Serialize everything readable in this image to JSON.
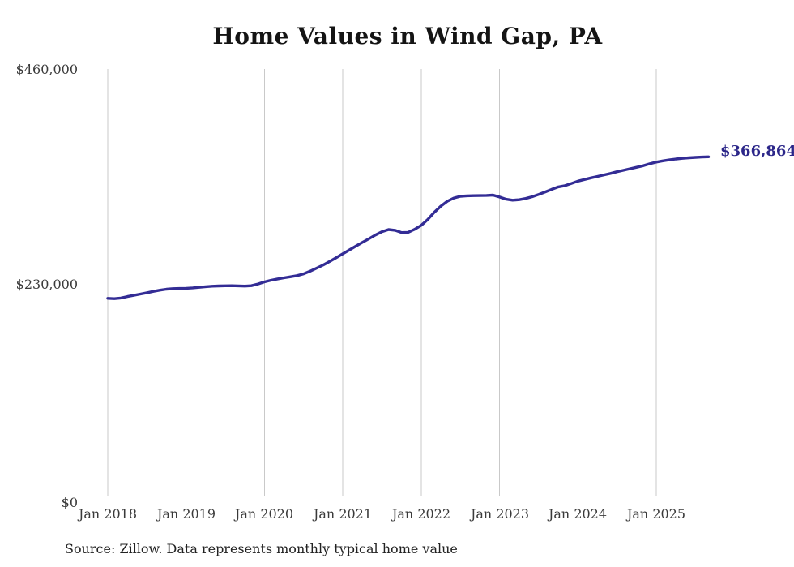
{
  "title": "Home Values in Wind Gap, PA",
  "source_note": "Source: Zillow. Data represents monthly typical home value",
  "end_label": "$366,864",
  "colors": {
    "line": "#332c95",
    "end_label": "#2b2689",
    "gridline": "#c9c9c9",
    "tick_text": "#3a3a3a",
    "title_text": "#141414",
    "source_text": "#222222",
    "background": "#ffffff"
  },
  "chart_data": {
    "type": "line",
    "title": "Home Values in Wind Gap, PA",
    "series_name": "Typical home value (monthly, Zillow)",
    "x_start": "Jan 2018",
    "x_end": "Sep 2025",
    "x_interval_months": 1,
    "x_tick_labels": [
      "Jan 2018",
      "Jan 2019",
      "Jan 2020",
      "Jan 2021",
      "Jan 2022",
      "Jan 2023",
      "Jan 2024",
      "Jan 2025"
    ],
    "y_tick_labels": [
      "$0",
      "$230,000",
      "$460,000"
    ],
    "y_ticks": [
      0,
      230000,
      460000
    ],
    "ylim": [
      0,
      460000
    ],
    "grid": "vertical-only",
    "legend": "none",
    "final_value": 366864,
    "final_value_label": "$366,864",
    "values": [
      215400,
      215100,
      215800,
      217300,
      218600,
      220000,
      221400,
      222900,
      224200,
      225200,
      225800,
      226000,
      226200,
      226600,
      227200,
      227900,
      228400,
      228700,
      228900,
      229000,
      228800,
      228500,
      229000,
      230800,
      233000,
      234800,
      236200,
      237400,
      238500,
      239700,
      241600,
      244500,
      247800,
      251200,
      255000,
      259000,
      263100,
      267200,
      271300,
      275300,
      279200,
      283200,
      286800,
      289000,
      288200,
      285800,
      286100,
      289300,
      293500,
      299800,
      307500,
      314000,
      319300,
      322800,
      324600,
      325100,
      325300,
      325400,
      325600,
      325900,
      323800,
      321500,
      320400,
      321000,
      322300,
      324200,
      326600,
      329300,
      332100,
      334700,
      336000,
      338300,
      340800,
      342600,
      344300,
      345900,
      347500,
      349100,
      350900,
      352500,
      354100,
      355700,
      357300,
      359400,
      361200,
      362500,
      363600,
      364500,
      365200,
      365800,
      366300,
      366600,
      366864
    ]
  }
}
